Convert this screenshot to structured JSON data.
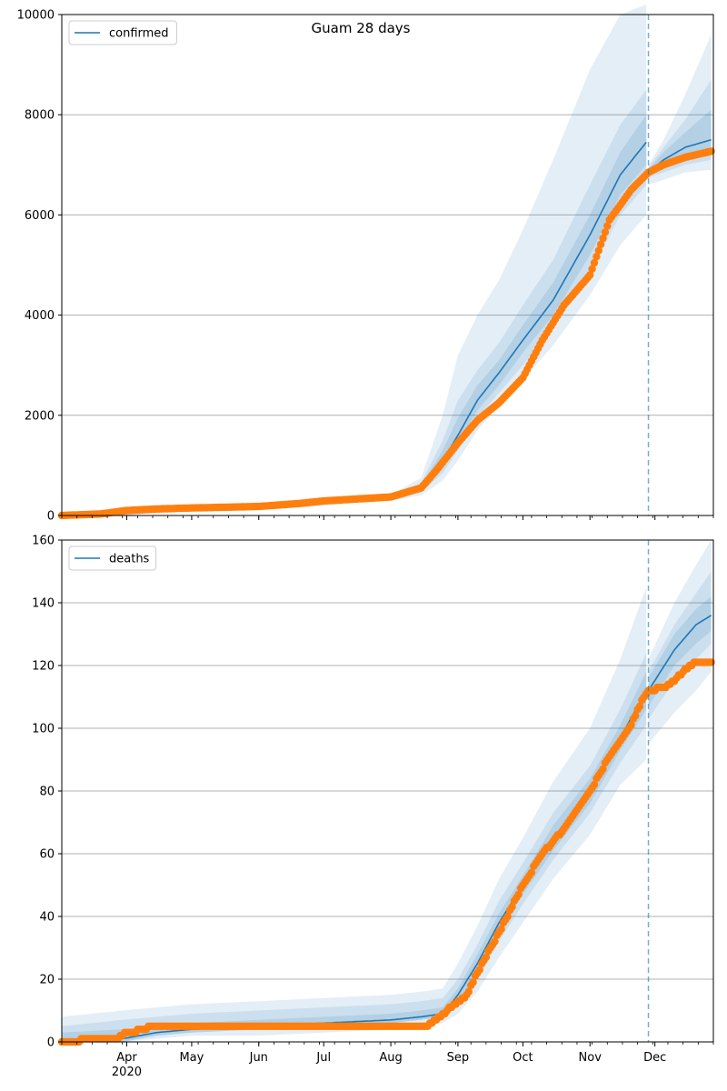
{
  "title": "Guam 28 days",
  "chart_data": [
    {
      "type": "line",
      "legend": "confirmed",
      "legend_position": "top-left",
      "grid": "horizontal",
      "ylim": [
        0,
        10000
      ],
      "yticks": [
        0,
        2000,
        4000,
        6000,
        8000,
        10000
      ],
      "forecast_start": "2020-11-28",
      "series": [
        {
          "name": "confirmed",
          "kind": "model-median",
          "x": [
            "2020-03-02",
            "2020-04-01",
            "2020-05-01",
            "2020-06-01",
            "2020-07-01",
            "2020-08-01",
            "2020-08-15",
            "2020-08-25",
            "2020-09-01",
            "2020-09-10",
            "2020-09-20",
            "2020-10-01",
            "2020-10-15",
            "2020-11-01",
            "2020-11-15",
            "2020-11-27",
            "2020-11-28",
            "2020-12-05",
            "2020-12-15",
            "2020-12-27"
          ],
          "values": [
            0,
            60,
            150,
            180,
            250,
            350,
            550,
            1100,
            1600,
            2300,
            2850,
            3500,
            4300,
            5600,
            6800,
            7450,
            6850,
            7100,
            7350,
            7500
          ],
          "bands_lower": [
            [
              0,
              0,
              100,
              140,
              200,
              300,
              400,
              700,
              1100,
              1700,
              2200,
              2700,
              3400,
              4400,
              5400,
              6000,
              6600,
              6700,
              6850,
              6900
            ],
            [
              0,
              10,
              120,
              160,
              220,
              320,
              460,
              850,
              1300,
              1950,
              2450,
              3000,
              3750,
              4850,
              6000,
              6600,
              6750,
              6850,
              7000,
              7100
            ],
            [
              0,
              30,
              135,
              170,
              235,
              335,
              500,
              950,
              1450,
              2100,
              2600,
              3250,
              4000,
              5200,
              6400,
              7000,
              6800,
              6950,
              7150,
              7250
            ]
          ],
          "bands_upper": [
            [
              50,
              120,
              220,
              240,
              320,
              420,
              750,
              2000,
              3200,
              4000,
              4700,
              5700,
              7100,
              8900,
              10000,
              10200,
              7000,
              7500,
              8400,
              9600
            ],
            [
              20,
              90,
              190,
              210,
              290,
              390,
              650,
              1500,
              2300,
              2900,
              3450,
              4200,
              5100,
              6600,
              7800,
              8500,
              6950,
              7350,
              7900,
              8700
            ],
            [
              10,
              75,
              170,
              195,
              270,
              370,
              600,
              1300,
              1950,
              2600,
              3100,
              3800,
              4650,
              6000,
              7250,
              8000,
              6900,
              7250,
              7650,
              8100
            ]
          ]
        },
        {
          "name": "observed",
          "kind": "observed",
          "x": [
            "2020-03-02",
            "2020-03-20",
            "2020-04-01",
            "2020-04-15",
            "2020-05-01",
            "2020-06-01",
            "2020-06-20",
            "2020-07-01",
            "2020-08-01",
            "2020-08-15",
            "2020-08-22",
            "2020-09-01",
            "2020-09-10",
            "2020-09-20",
            "2020-10-01",
            "2020-10-10",
            "2020-10-20",
            "2020-11-01",
            "2020-11-10",
            "2020-11-20",
            "2020-11-28",
            "2020-12-05",
            "2020-12-15",
            "2020-12-27"
          ],
          "values": [
            0,
            30,
            100,
            130,
            150,
            180,
            240,
            290,
            370,
            550,
            900,
            1450,
            1900,
            2250,
            2750,
            3500,
            4200,
            4800,
            5900,
            6500,
            6850,
            7000,
            7150,
            7270
          ]
        }
      ]
    },
    {
      "type": "line",
      "legend": "deaths",
      "legend_position": "top-left",
      "grid": "horizontal",
      "ylim": [
        0,
        160
      ],
      "yticks": [
        0,
        20,
        40,
        60,
        80,
        100,
        120,
        140,
        160
      ],
      "forecast_start": "2020-11-28",
      "xticks": [
        "Apr",
        "May",
        "Jun",
        "Jul",
        "Aug",
        "Sep",
        "Oct",
        "Nov",
        "Dec"
      ],
      "xtick_dates": [
        "2020-04-01",
        "2020-05-01",
        "2020-06-01",
        "2020-07-01",
        "2020-08-01",
        "2020-09-01",
        "2020-10-01",
        "2020-11-01",
        "2020-12-01"
      ],
      "year_label": "2020",
      "series": [
        {
          "name": "deaths",
          "kind": "model-median",
          "x": [
            "2020-03-02",
            "2020-03-30",
            "2020-04-15",
            "2020-05-01",
            "2020-06-01",
            "2020-07-01",
            "2020-08-01",
            "2020-08-15",
            "2020-08-25",
            "2020-09-01",
            "2020-09-10",
            "2020-09-20",
            "2020-10-01",
            "2020-10-15",
            "2020-11-01",
            "2020-11-15",
            "2020-11-27",
            "2020-11-28",
            "2020-12-10",
            "2020-12-20",
            "2020-12-27"
          ],
          "values": [
            0,
            1,
            3,
            4,
            5,
            6,
            7,
            8,
            9,
            15,
            25,
            38,
            50,
            65,
            80,
            97,
            112,
            112,
            125,
            133,
            136
          ],
          "bands_lower": [
            [
              0,
              0,
              1,
              2,
              2,
              3,
              4,
              5,
              6,
              9,
              16,
              27,
              38,
              52,
              66,
              82,
              90,
              95,
              105,
              112,
              118
            ],
            [
              0,
              0,
              2,
              3,
              4,
              5,
              6,
              7,
              8,
              12,
              20,
              32,
              44,
              58,
              73,
              89,
              101,
              103,
              115,
              122,
              127
            ],
            [
              0,
              0,
              2,
              3,
              4,
              5,
              6,
              7,
              8,
              13,
              22,
              35,
              47,
              61,
              76,
              93,
              106,
              107,
              120,
              127,
              131
            ]
          ],
          "bands_upper": [
            [
              8,
              10,
              11,
              12,
              13,
              14,
              15,
              16,
              17,
              25,
              37,
              52,
              65,
              83,
              100,
              122,
              145,
              122,
              140,
              152,
              160
            ],
            [
              5,
              7,
              8,
              9,
              10,
              11,
              12,
              13,
              14,
              20,
              31,
              45,
              57,
              73,
              88,
              106,
              124,
              118,
              133,
              143,
              150
            ],
            [
              3,
              4,
              5,
              6,
              7,
              8,
              9,
              10,
              11,
              17,
              28,
              41,
              53,
              69,
              84,
              101,
              118,
              116,
              130,
              138,
              142
            ]
          ]
        },
        {
          "name": "observed",
          "kind": "observed",
          "x": [
            "2020-03-02",
            "2020-03-20",
            "2020-03-28",
            "2020-04-01",
            "2020-04-10",
            "2020-04-12",
            "2020-05-01",
            "2020-06-01",
            "2020-07-01",
            "2020-08-01",
            "2020-08-18",
            "2020-08-22",
            "2020-08-27",
            "2020-09-05",
            "2020-09-10",
            "2020-09-20",
            "2020-10-01",
            "2020-10-10",
            "2020-10-20",
            "2020-11-01",
            "2020-11-10",
            "2020-11-20",
            "2020-11-26",
            "2020-11-28",
            "2020-12-05",
            "2020-12-10",
            "2020-12-15",
            "2020-12-20",
            "2020-12-27"
          ],
          "values": [
            0,
            1,
            1,
            3,
            4,
            5,
            5,
            5,
            5,
            5,
            5,
            7,
            10,
            15,
            22,
            35,
            50,
            60,
            68,
            80,
            91,
            101,
            110,
            112,
            113,
            115,
            119,
            121,
            121
          ]
        }
      ]
    }
  ],
  "colors": {
    "median": "#1f77b4",
    "band": "#1f77b4",
    "observed": "#ff7f0e",
    "grid": "#b0b0b0",
    "vline": "#1f77b4"
  }
}
